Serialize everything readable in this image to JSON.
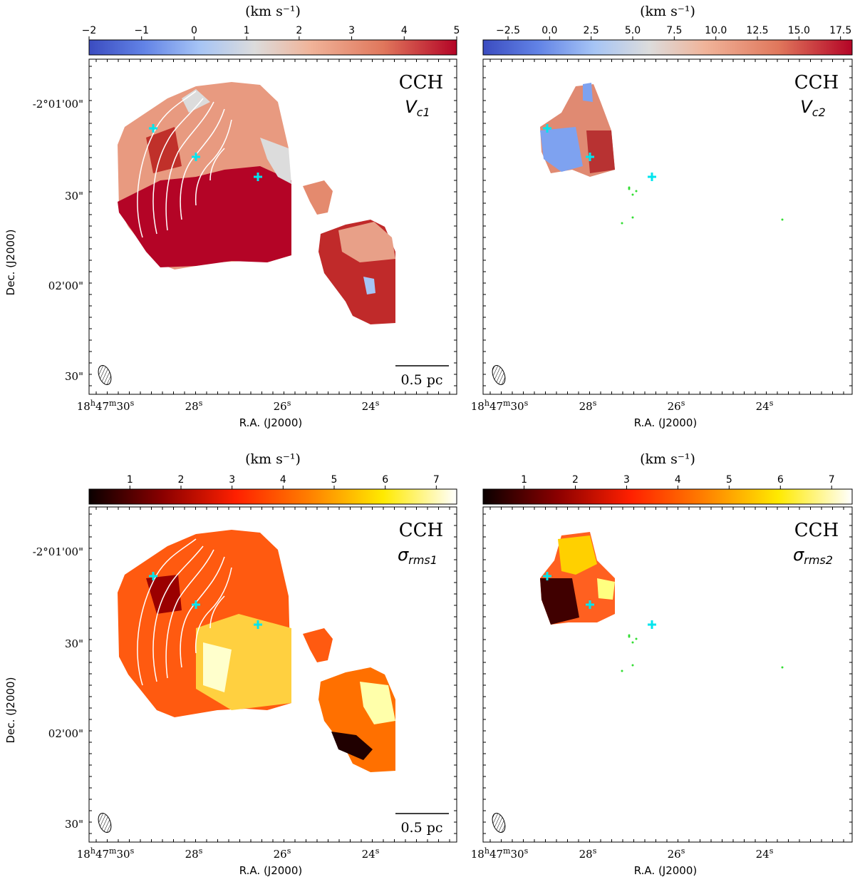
{
  "panels": [
    {
      "id": "vc1",
      "unit_label": "(km s⁻¹)",
      "colormap": "coolwarm",
      "colorbar_ticks": [
        "−2",
        "−1",
        "0",
        "1",
        "2",
        "3",
        "4",
        "5"
      ],
      "colorbar_range": [
        -2,
        5
      ],
      "molecule": "CCH",
      "symbol_main": "V",
      "symbol_sub": "c1",
      "scalebar_label": "0.5 pc",
      "dec_labels": [
        "-2°01'00\"",
        "30\"",
        "02'00\"",
        "30\""
      ],
      "ra_labels": [
        "18h47m30s",
        "28s",
        "26s",
        "24s"
      ],
      "show_dec_axis_label": true,
      "map_type": "velocity1",
      "has_contours": true,
      "has_scalebar": true
    },
    {
      "id": "vc2",
      "unit_label": "(km s⁻¹)",
      "colormap": "coolwarm",
      "colorbar_ticks": [
        "−2.5",
        "0.0",
        "2.5",
        "5.0",
        "7.5",
        "10.0",
        "12.5",
        "15.0",
        "17.5"
      ],
      "colorbar_range": [
        -4,
        18.2
      ],
      "molecule": "CCH",
      "symbol_main": "V",
      "symbol_sub": "c2",
      "scalebar_label": "",
      "dec_labels": [],
      "ra_labels": [
        "18h47m30s",
        "28s",
        "26s",
        "24s"
      ],
      "show_dec_axis_label": false,
      "map_type": "velocity2",
      "has_contours": false,
      "has_scalebar": false
    },
    {
      "id": "s1",
      "unit_label": "(km s⁻¹)",
      "colormap": "hot",
      "colorbar_ticks": [
        "1",
        "2",
        "3",
        "4",
        "5",
        "6",
        "7"
      ],
      "colorbar_range": [
        0.2,
        7.4
      ],
      "molecule": "CCH",
      "symbol_main": "σ",
      "symbol_sub": "rms1",
      "scalebar_label": "0.5 pc",
      "dec_labels": [
        "-2°01'00\"",
        "30\"",
        "02'00\"",
        "30\""
      ],
      "ra_labels": [
        "18h47m30s",
        "28s",
        "26s",
        "24s"
      ],
      "show_dec_axis_label": true,
      "map_type": "sigma1",
      "has_contours": true,
      "has_scalebar": true
    },
    {
      "id": "s2",
      "unit_label": "(km s⁻¹)",
      "colormap": "hot",
      "colorbar_ticks": [
        "1",
        "2",
        "3",
        "4",
        "5",
        "6",
        "7"
      ],
      "colorbar_range": [
        0.2,
        7.4
      ],
      "molecule": "CCH",
      "symbol_main": "σ",
      "symbol_sub": "rms2",
      "scalebar_label": "",
      "dec_labels": [],
      "ra_labels": [
        "18h47m30s",
        "28s",
        "26s",
        "24s"
      ],
      "show_dec_axis_label": false,
      "map_type": "sigma2",
      "has_contours": false,
      "has_scalebar": false
    }
  ],
  "axis_labels": {
    "x": "R.A. (J2000)",
    "y": "Dec. (J2000)"
  },
  "colors": {
    "source_marker": "#00e5ee",
    "contour": "#ffffff",
    "green_points": "#33dd33"
  }
}
